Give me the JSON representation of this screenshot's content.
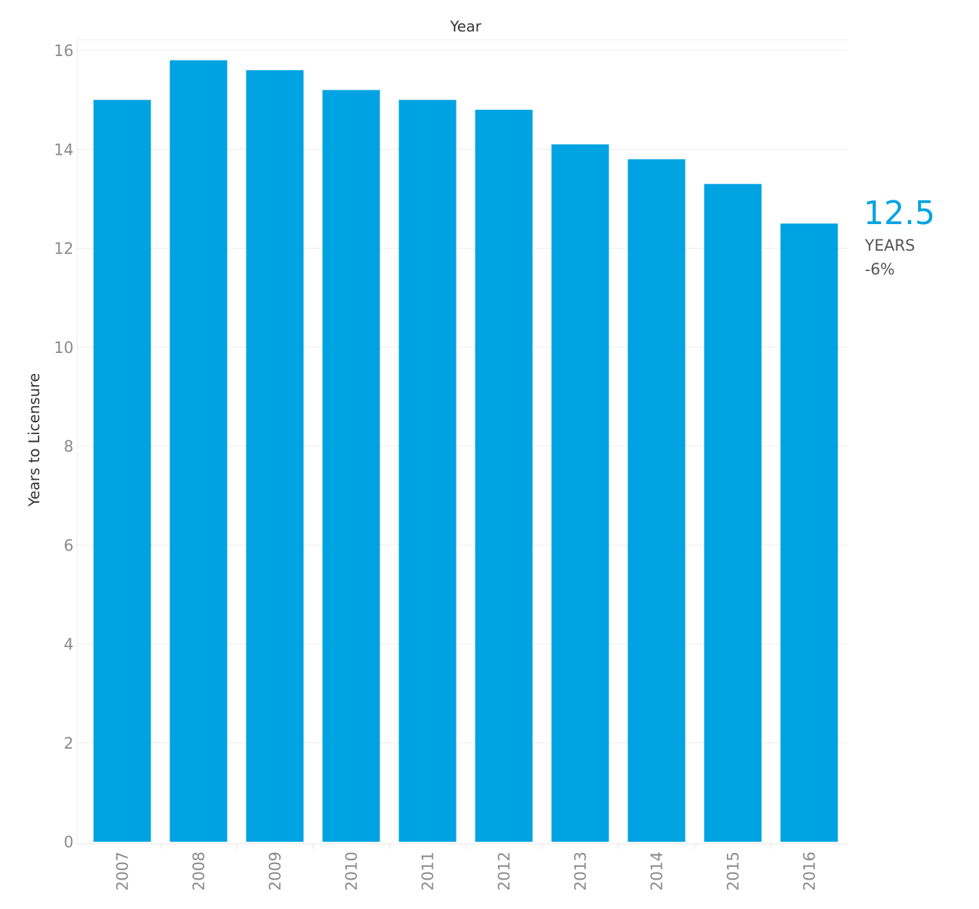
{
  "chart_data": {
    "type": "bar",
    "title": "",
    "xlabel": "Year",
    "ylabel": "Years to Licensure",
    "categories": [
      "2007",
      "2008",
      "2009",
      "2010",
      "2011",
      "2012",
      "2013",
      "2014",
      "2015",
      "2016"
    ],
    "values": [
      15.0,
      15.8,
      15.6,
      15.2,
      15.0,
      14.8,
      14.1,
      13.8,
      13.3,
      12.5
    ],
    "ylim": [
      0,
      16
    ],
    "yticks": [
      "0",
      "2",
      "4",
      "6",
      "8",
      "10",
      "12",
      "14",
      "16"
    ],
    "grid": true,
    "bar_color": "#00a3e2",
    "annotation": {
      "value": "12.5",
      "unit": "YEARS",
      "change": "-6%"
    }
  }
}
